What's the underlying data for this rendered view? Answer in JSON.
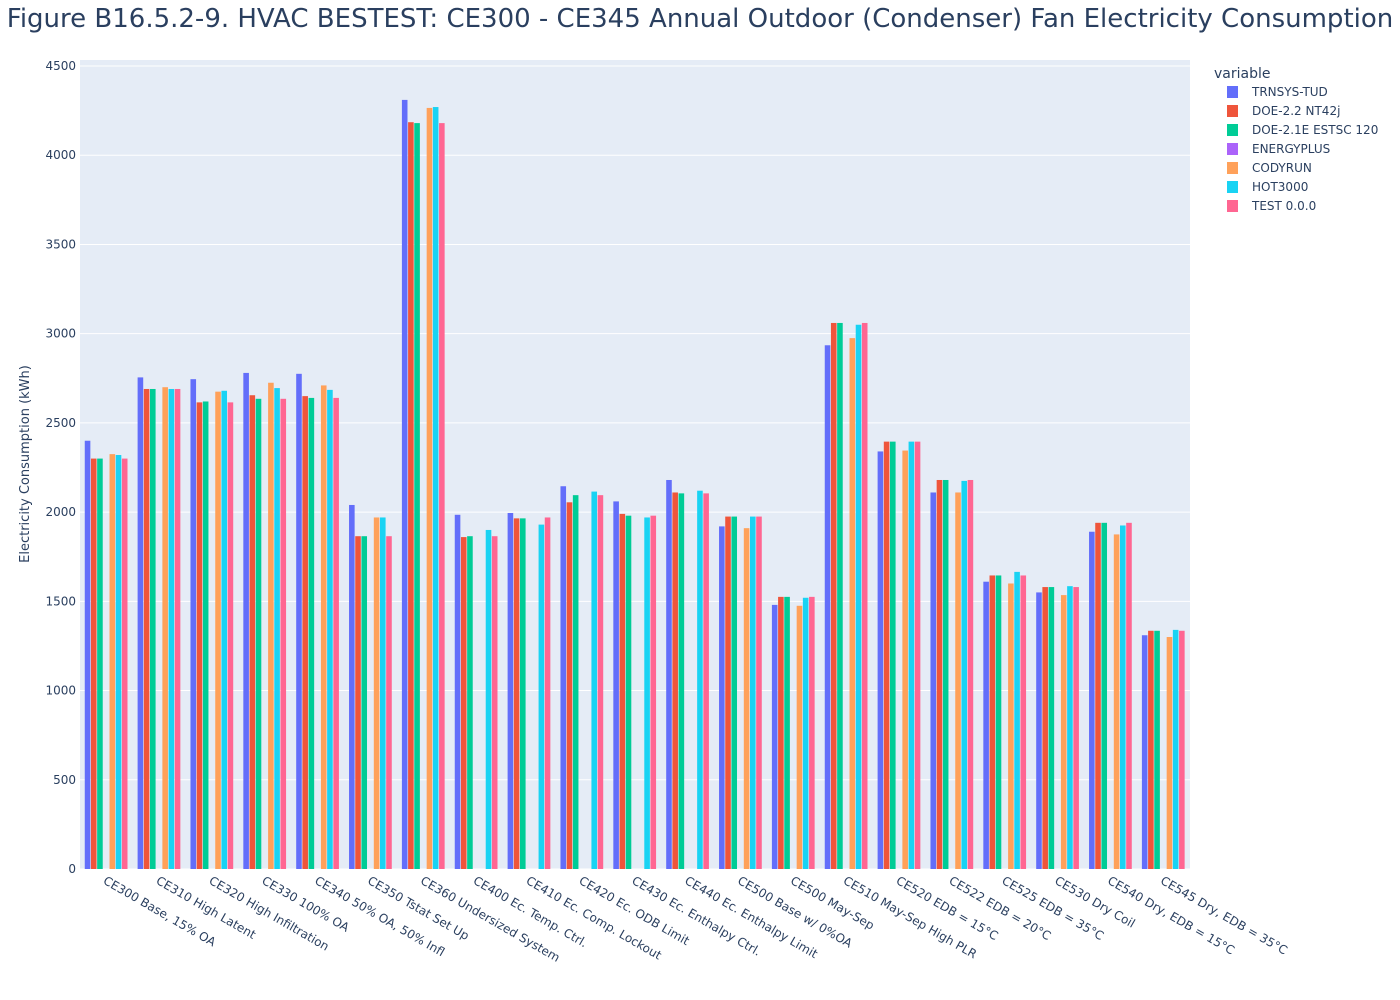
{
  "chart_data": {
    "type": "bar",
    "title": "Figure B16.5.2-9. HVAC BESTEST: CE300 - CE345 Annual Outdoor (Condenser) Fan Electricity Consumption",
    "xlabel": "",
    "ylabel": "Electricity Consumption  (kWh)",
    "ylim": [
      0,
      4500
    ],
    "yticks": [
      0,
      500,
      1000,
      1500,
      2000,
      2500,
      3000,
      3500,
      4000,
      4500
    ],
    "grid": true,
    "legend_title": "variable",
    "legend_position": "top-right",
    "categories": [
      "CE300 Base, 15% OA",
      "CE310 High Latent",
      "CE320 High Infiltration",
      "CE330 100% OA",
      "CE340 50% OA, 50% Infl",
      "CE350 Tstat Set Up",
      "CE360 Undersized System",
      "CE400 Ec. Temp. Ctrl.",
      "CE410 Ec. Comp. Lockout",
      "CE420 Ec. ODB Limit",
      "CE430 Ec. Enthalpy Ctrl.",
      "CE440 Ec. Enthalpy Limit",
      "CE500 Base w/ 0%OA",
      "CE500 May-Sep",
      "CE510 May-Sep High PLR",
      "CE520 EDB = 15°C",
      "CE522 EDB = 20°C",
      "CE525 EDB = 35°C",
      "CE530 Dry Coil",
      "CE540 Dry, EDB = 15°C",
      "CE545 Dry, EDB = 35°C"
    ],
    "series": [
      {
        "name": "TRNSYS-TUD",
        "color": "#636efa",
        "values": [
          2400,
          2755,
          2745,
          2780,
          2775,
          2040,
          4310,
          1985,
          1995,
          2145,
          2060,
          2180,
          1920,
          1480,
          2935,
          2340,
          2110,
          1610,
          1550,
          1890,
          1310
        ]
      },
      {
        "name": "DOE-2.2 NT42j",
        "color": "#ef553b",
        "values": [
          2300,
          2690,
          2615,
          2655,
          2650,
          1865,
          4185,
          1860,
          1965,
          2055,
          1990,
          2110,
          1975,
          1525,
          3060,
          2395,
          2180,
          1645,
          1580,
          1940,
          1335
        ]
      },
      {
        "name": "DOE-2.1E ESTSC 120",
        "color": "#00cc96",
        "values": [
          2300,
          2690,
          2620,
          2635,
          2640,
          1865,
          4180,
          1865,
          1965,
          2095,
          1980,
          2105,
          1975,
          1525,
          3060,
          2395,
          2180,
          1645,
          1580,
          1940,
          1335
        ]
      },
      {
        "name": "ENERGYPLUS",
        "color": "#ab63fa",
        "values": [
          null,
          null,
          null,
          null,
          null,
          null,
          null,
          null,
          null,
          null,
          null,
          null,
          null,
          null,
          null,
          null,
          null,
          null,
          null,
          null,
          null
        ]
      },
      {
        "name": "CODYRUN",
        "color": "#ffa15a",
        "values": [
          2325,
          2700,
          2675,
          2725,
          2710,
          1970,
          4265,
          null,
          null,
          null,
          null,
          null,
          1910,
          1475,
          2975,
          2345,
          2110,
          1600,
          1535,
          1875,
          1300
        ]
      },
      {
        "name": "HOT3000",
        "color": "#19d3f3",
        "values": [
          2320,
          2690,
          2680,
          2695,
          2685,
          1970,
          4270,
          1900,
          1930,
          2115,
          1970,
          2120,
          1975,
          1520,
          3050,
          2395,
          2175,
          1665,
          1585,
          1925,
          1340
        ]
      },
      {
        "name": "TEST 0.0.0",
        "color": "#ff6692",
        "values": [
          2300,
          2690,
          2615,
          2635,
          2640,
          1865,
          4180,
          1865,
          1970,
          2095,
          1980,
          2105,
          1975,
          1525,
          3060,
          2395,
          2180,
          1645,
          1580,
          1940,
          1335
        ]
      }
    ]
  }
}
